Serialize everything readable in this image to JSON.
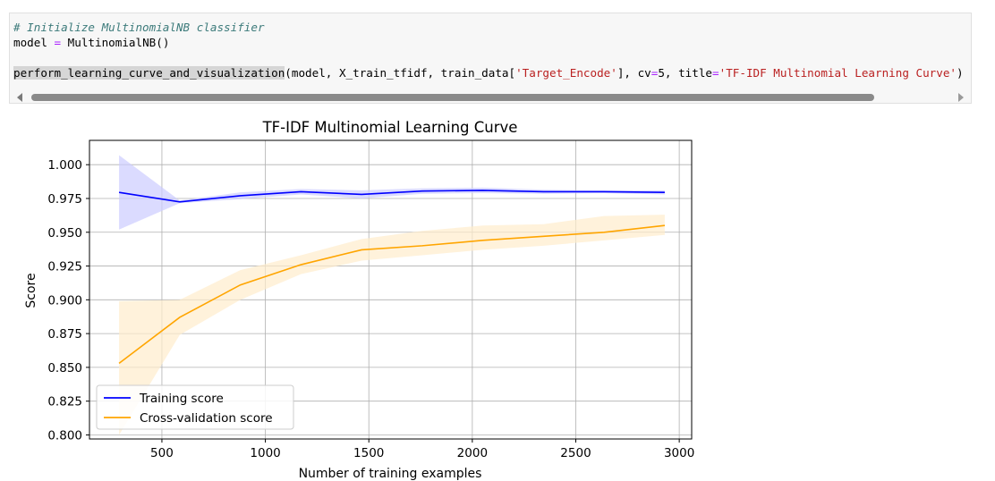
{
  "code_cell": {
    "lines": [
      [
        {
          "t": "# Initialize MultinomialNB classifier",
          "c": "cm"
        }
      ],
      [
        {
          "t": "model ",
          "c": ""
        },
        {
          "t": "=",
          "c": "op"
        },
        {
          "t": " MultinomialNB()",
          "c": ""
        }
      ],
      [],
      [
        {
          "t": "perform_learning_curve_and_visualization",
          "c": "hl"
        },
        {
          "t": "(model, X_train_tfidf, train_data[",
          "c": ""
        },
        {
          "t": "'Target_Encode'",
          "c": "st"
        },
        {
          "t": "], cv",
          "c": ""
        },
        {
          "t": "=",
          "c": "op"
        },
        {
          "t": "5, title",
          "c": ""
        },
        {
          "t": "=",
          "c": "op"
        },
        {
          "t": "'TF-IDF Multinomial Learning Curve'",
          "c": "st"
        },
        {
          "t": ")",
          "c": ""
        }
      ]
    ],
    "scrollbar": {
      "left_arrow": "left-arrow-icon",
      "right_arrow": "right-arrow-icon"
    }
  },
  "chart_data": {
    "type": "line",
    "title": "TF-IDF Multinomial Learning Curve",
    "xlabel": "Number of training examples",
    "ylabel": "Score",
    "xlim": [
      150,
      3060
    ],
    "ylim": [
      0.797,
      1.018
    ],
    "xticks": [
      500,
      1000,
      1500,
      2000,
      2500,
      3000
    ],
    "yticks": [
      0.8,
      0.825,
      0.85,
      0.875,
      0.9,
      0.925,
      0.95,
      0.975,
      1.0
    ],
    "ytick_labels": [
      "0.800",
      "0.825",
      "0.850",
      "0.875",
      "0.900",
      "0.925",
      "0.950",
      "0.975",
      "1.000"
    ],
    "grid": true,
    "legend_location": "lower-left",
    "x": [
      293,
      586,
      879,
      1172,
      1465,
      1758,
      2051,
      2344,
      2637,
      2930
    ],
    "series": [
      {
        "name": "Training score",
        "color": "#0000ff",
        "band_color": "#ccccff",
        "values": [
          0.9795,
          0.9725,
          0.977,
          0.98,
          0.978,
          0.9805,
          0.981,
          0.98,
          0.98,
          0.9795
        ],
        "upper": [
          1.007,
          0.9735,
          0.9795,
          0.982,
          0.981,
          0.9825,
          0.983,
          0.9815,
          0.981,
          0.981
        ],
        "lower": [
          0.952,
          0.9715,
          0.9745,
          0.978,
          0.975,
          0.9785,
          0.979,
          0.9785,
          0.979,
          0.978
        ]
      },
      {
        "name": "Cross-validation score",
        "color": "#ffa500",
        "band_color": "#ffedcc",
        "values": [
          0.853,
          0.887,
          0.911,
          0.926,
          0.937,
          0.94,
          0.944,
          0.947,
          0.95,
          0.955
        ],
        "upper": [
          0.899,
          0.9,
          0.922,
          0.933,
          0.945,
          0.951,
          0.955,
          0.956,
          0.962,
          0.963
        ],
        "lower": [
          0.8,
          0.874,
          0.9,
          0.919,
          0.929,
          0.933,
          0.937,
          0.94,
          0.944,
          0.948
        ]
      }
    ]
  }
}
